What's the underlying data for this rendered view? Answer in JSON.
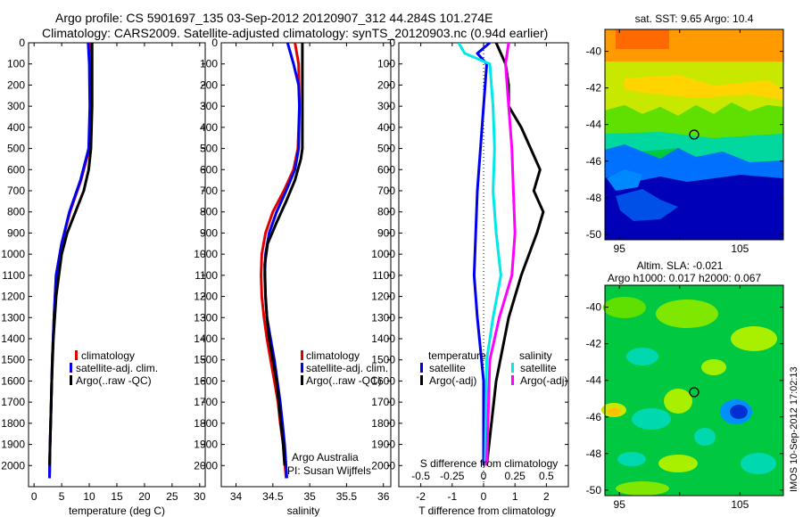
{
  "header": {
    "title_line1": "Argo profile: CS 5901697_135 03-Sep-2012 20120907_312 44.284S 101.274E",
    "title_line2": "Climatology: CARS2009. Satellite-adjusted climatology: synTS_20120903.nc (0.94d earlier)"
  },
  "side_label": "IMOS 10-Sep-2012 17:02:13",
  "colors": {
    "climatology": "#e00000",
    "satellite_adj": "#0000ee",
    "argo": "#000000",
    "satellite": "#00e8e8",
    "argo_adj_sal": "#ff00ff"
  },
  "chart_data": [
    {
      "type": "line",
      "xlabel": "temperature (deg C)",
      "ylabel": "",
      "xlim": [
        -1,
        31
      ],
      "ylim": [
        2100,
        0
      ],
      "xticks": [
        0,
        5,
        10,
        15,
        20,
        25,
        30
      ],
      "yticks": [
        0,
        100,
        200,
        300,
        400,
        500,
        600,
        700,
        800,
        900,
        1000,
        1100,
        1200,
        1300,
        1400,
        1500,
        1600,
        1700,
        1800,
        1900,
        2000
      ],
      "legend": [
        "climatology",
        "satellite-adj. clim.",
        "Argo(..raw -QC)"
      ],
      "series": [
        {
          "name": "climatology",
          "color": "#e00000",
          "points": [
            [
              10.2,
              0
            ],
            [
              10.3,
              100
            ],
            [
              10.2,
              300
            ],
            [
              10,
              500
            ],
            [
              8.5,
              650
            ],
            [
              6.5,
              800
            ],
            [
              5,
              950
            ],
            [
              4,
              1100
            ],
            [
              3.6,
              1300
            ],
            [
              3.3,
              1500
            ],
            [
              3.1,
              1700
            ],
            [
              2.9,
              1900
            ],
            [
              2.8,
              2060
            ]
          ]
        },
        {
          "name": "satellite-adj. clim.",
          "color": "#0000ee",
          "points": [
            [
              9.8,
              0
            ],
            [
              10,
              100
            ],
            [
              10.1,
              300
            ],
            [
              9.9,
              500
            ],
            [
              8.4,
              650
            ],
            [
              6.4,
              800
            ],
            [
              5,
              950
            ],
            [
              4,
              1100
            ],
            [
              3.6,
              1300
            ],
            [
              3.3,
              1500
            ],
            [
              3.1,
              1700
            ],
            [
              2.9,
              1900
            ],
            [
              2.8,
              2060
            ]
          ]
        },
        {
          "name": "Argo(..raw -QC)",
          "color": "#000000",
          "points": [
            [
              10.5,
              0
            ],
            [
              10.5,
              100
            ],
            [
              10.5,
              300
            ],
            [
              10.3,
              500
            ],
            [
              9.9,
              600
            ],
            [
              9,
              700
            ],
            [
              7.5,
              800
            ],
            [
              6,
              900
            ],
            [
              5,
              1000
            ],
            [
              4,
              1200
            ],
            [
              3.5,
              1400
            ],
            [
              3.2,
              1600
            ],
            [
              3,
              1800
            ],
            [
              2.8,
              2000
            ]
          ]
        }
      ]
    },
    {
      "type": "line",
      "xlabel": "salinity",
      "ylabel": "",
      "xlim": [
        33.8,
        36.1
      ],
      "ylim": [
        2100,
        0
      ],
      "xticks": [
        34,
        34.5,
        35,
        35.5,
        36
      ],
      "yticks": [
        0,
        100,
        200,
        300,
        400,
        500,
        600,
        700,
        800,
        900,
        1000,
        1100,
        1200,
        1300,
        1400,
        1500,
        1600,
        1700,
        1800,
        1900,
        2000
      ],
      "legend": [
        "climatology",
        "satellite-adj. clim.",
        "Argo(..raw -QC)"
      ],
      "annotations": [
        "Argo Australia",
        "PI: Susan Wijffels"
      ],
      "series": [
        {
          "name": "climatology",
          "color": "#e00000",
          "points": [
            [
              34.8,
              0
            ],
            [
              34.85,
              100
            ],
            [
              34.86,
              300
            ],
            [
              34.84,
              500
            ],
            [
              34.78,
              600
            ],
            [
              34.65,
              700
            ],
            [
              34.5,
              800
            ],
            [
              34.4,
              900
            ],
            [
              34.35,
              1000
            ],
            [
              34.34,
              1100
            ],
            [
              34.35,
              1200
            ],
            [
              34.38,
              1300
            ],
            [
              34.42,
              1400
            ],
            [
              34.47,
              1500
            ],
            [
              34.52,
              1600
            ],
            [
              34.57,
              1700
            ],
            [
              34.6,
              1800
            ],
            [
              34.64,
              1900
            ],
            [
              34.68,
              2060
            ]
          ]
        },
        {
          "name": "satellite-adj. clim.",
          "color": "#0000ee",
          "points": [
            [
              34.7,
              0
            ],
            [
              34.78,
              100
            ],
            [
              34.85,
              200
            ],
            [
              34.86,
              300
            ],
            [
              34.85,
              500
            ],
            [
              34.8,
              600
            ],
            [
              34.68,
              700
            ],
            [
              34.55,
              800
            ],
            [
              34.45,
              900
            ],
            [
              34.4,
              1000
            ],
            [
              34.39,
              1100
            ],
            [
              34.4,
              1200
            ],
            [
              34.42,
              1300
            ],
            [
              34.47,
              1400
            ],
            [
              34.52,
              1500
            ],
            [
              34.56,
              1600
            ],
            [
              34.6,
              1700
            ],
            [
              34.63,
              1800
            ],
            [
              34.66,
              1900
            ],
            [
              34.69,
              2060
            ]
          ]
        },
        {
          "name": "Argo(..raw -QC)",
          "color": "#000000",
          "points": [
            [
              34.9,
              0
            ],
            [
              34.9,
              100
            ],
            [
              34.9,
              300
            ],
            [
              34.9,
              500
            ],
            [
              34.88,
              550
            ],
            [
              34.8,
              650
            ],
            [
              34.68,
              750
            ],
            [
              34.55,
              850
            ],
            [
              34.43,
              950
            ],
            [
              34.39,
              1050
            ],
            [
              34.4,
              1200
            ],
            [
              34.42,
              1300
            ],
            [
              34.45,
              1400
            ],
            [
              34.5,
              1500
            ],
            [
              34.55,
              1600
            ],
            [
              34.58,
              1700
            ],
            [
              34.61,
              1800
            ],
            [
              34.64,
              1900
            ],
            [
              34.66,
              2000
            ]
          ]
        }
      ]
    },
    {
      "type": "line",
      "xlabel": "T difference from climatology",
      "toplabel": "S difference from climatology",
      "ylabel": "",
      "xlim": [
        -2.7,
        2.7
      ],
      "ylim": [
        2100,
        0
      ],
      "xticks": [
        -2,
        -1,
        0,
        1,
        2
      ],
      "stick_labels": [
        "-0.5",
        "-0.25",
        "0",
        "0.25",
        "0.5"
      ],
      "stick_values": [
        -0.5,
        -0.25,
        0,
        0.25,
        0.5
      ],
      "yticks": [
        0,
        100,
        200,
        300,
        400,
        500,
        600,
        700,
        800,
        900,
        1000,
        1100,
        1200,
        1300,
        1400,
        1500,
        1600,
        1700,
        1800,
        1900,
        2000
      ],
      "legend_headers": [
        "temperature",
        "salinity"
      ],
      "legend": [
        "satellite",
        "Argo(-adj)",
        "satellite",
        "Argo(-adj)"
      ],
      "series": [
        {
          "name": "satellite",
          "color": "#0000ee",
          "points": [
            [
              0.2,
              0
            ],
            [
              -0.2,
              50
            ],
            [
              0.1,
              100
            ],
            [
              0,
              300
            ],
            [
              -0.1,
              500
            ],
            [
              -0.2,
              700
            ],
            [
              -0.25,
              900
            ],
            [
              -0.3,
              1100
            ],
            [
              -0.2,
              1300
            ],
            [
              0,
              1600
            ],
            [
              0,
              2000
            ]
          ]
        },
        {
          "name": "Argo(-adj)",
          "color": "#000000",
          "points": [
            [
              0.4,
              0
            ],
            [
              0.7,
              100
            ],
            [
              0.8,
              200
            ],
            [
              0.8,
              300
            ],
            [
              1.2,
              400
            ],
            [
              1.5,
              500
            ],
            [
              1.8,
              600
            ],
            [
              1.6,
              700
            ],
            [
              1.9,
              800
            ],
            [
              1.7,
              900
            ],
            [
              1.2,
              1100
            ],
            [
              0.8,
              1300
            ],
            [
              0.4,
              1600
            ],
            [
              0.1,
              2000
            ]
          ]
        },
        {
          "name": "satellite",
          "color": "#00e8e8",
          "points": [
            [
              -0.8,
              0
            ],
            [
              -0.6,
              50
            ],
            [
              0.2,
              100
            ],
            [
              0.3,
              300
            ],
            [
              0.35,
              500
            ],
            [
              0.3,
              700
            ],
            [
              0.4,
              900
            ],
            [
              0.55,
              1100
            ],
            [
              0.3,
              1300
            ],
            [
              0.1,
              1500
            ],
            [
              0.05,
              2000
            ]
          ]
        },
        {
          "name": "Argo(-adj)",
          "color": "#ff00ff",
          "points": [
            [
              0.8,
              0
            ],
            [
              0.7,
              100
            ],
            [
              0.8,
              300
            ],
            [
              0.9,
              500
            ],
            [
              0.95,
              700
            ],
            [
              1,
              900
            ],
            [
              0.9,
              1100
            ],
            [
              0.5,
              1300
            ],
            [
              0.2,
              1500
            ],
            [
              0.1,
              2000
            ]
          ]
        }
      ]
    },
    {
      "type": "heatmap",
      "title": "sat. SST: 9.65 Argo: 10.4",
      "xticks": [
        95,
        100,
        105
      ],
      "xtick_labels": [
        "95",
        "",
        "105"
      ],
      "yticks": [
        -40,
        -42,
        -44,
        -46,
        -48,
        -50
      ],
      "xlim": [
        93.8,
        108.6
      ],
      "ylim": [
        -50.3,
        -38.8
      ],
      "marker": [
        101.274,
        -44.284
      ]
    },
    {
      "type": "heatmap",
      "title": "Altim. SLA: -0.021",
      "subtitle": "Argo h1000: 0.017 h2000: 0.067",
      "xticks": [
        95,
        100,
        105
      ],
      "xtick_labels": [
        "95",
        "",
        "105"
      ],
      "yticks": [
        -40,
        -42,
        -44,
        -46,
        -48,
        -50
      ],
      "xlim": [
        93.8,
        108.6
      ],
      "ylim": [
        -50.3,
        -38.8
      ],
      "marker": [
        101.274,
        -44.284
      ]
    }
  ]
}
